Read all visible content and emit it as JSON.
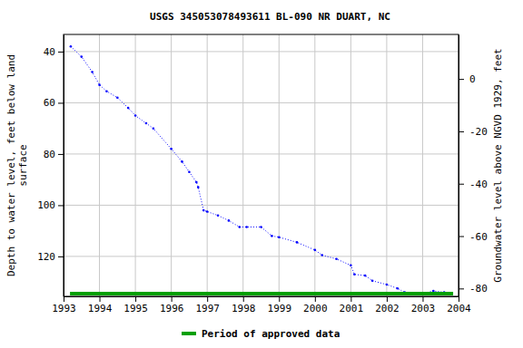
{
  "chart_data": {
    "type": "line",
    "title": "USGS 345053078493611 BL-090 NR DUART, NC",
    "y_label": [
      "Depth to water level, feet below land",
      "surface"
    ],
    "y2_label": "Groundwater level above NGVD 1929, feet",
    "xlim": [
      1993,
      2004
    ],
    "xticks": [
      1993,
      1994,
      1995,
      1996,
      1997,
      1998,
      1999,
      2000,
      2001,
      2002,
      2003,
      2004
    ],
    "ylim": [
      135.6,
      33.3
    ],
    "yticks": [
      40,
      60,
      80,
      100,
      120
    ],
    "y2lim": [
      -83,
      17
    ],
    "y2ticks": [
      0,
      -20,
      -40,
      -60,
      -80
    ],
    "grid": true,
    "legend": "bottom",
    "series": [
      {
        "color": "#0000ff",
        "line_style": "dotted",
        "marker": "point",
        "x": [
          1993.2,
          1993.5,
          1993.8,
          1994.0,
          1994.2,
          1994.5,
          1994.8,
          1995.0,
          1995.3,
          1995.5,
          1996.0,
          1996.3,
          1996.5,
          1996.7,
          1996.75,
          1996.9,
          1997.0,
          1997.3,
          1997.6,
          1997.9,
          1998.1,
          1998.5,
          1998.8,
          1999.0,
          1999.5,
          2000.0,
          2000.2,
          2000.6,
          2001.0,
          2001.1,
          2001.4,
          2001.6,
          2002.0,
          2002.3,
          2002.5,
          2002.8,
          2003.0,
          2003.3,
          2003.6,
          2003.8
        ],
        "values": [
          38,
          42,
          48,
          53,
          55.5,
          58,
          62,
          65,
          68,
          70,
          78,
          83,
          87,
          91,
          93,
          102,
          102.5,
          104,
          106,
          108.5,
          108.5,
          108.5,
          112,
          112.5,
          114.5,
          117.5,
          119.5,
          121,
          123.5,
          127,
          127.5,
          129.5,
          131,
          132.5,
          134,
          134.5,
          134.5,
          133.5,
          134,
          134.5
        ]
      },
      {
        "name": "Period of approved data",
        "type": "period",
        "color": "#00a000",
        "x": [
          1993.18,
          2003.85
        ]
      }
    ]
  }
}
